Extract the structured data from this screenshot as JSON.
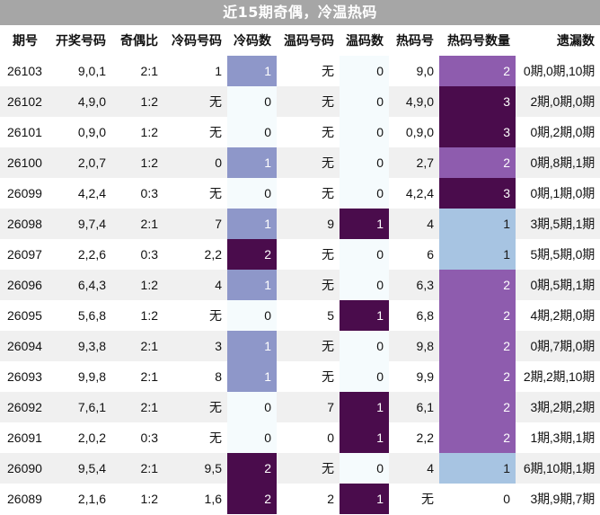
{
  "title": "近15期奇偶，冷温热码",
  "columns": [
    "期号",
    "开奖号码",
    "奇偶比",
    "冷码号码",
    "冷码数",
    "温码号码",
    "温码数",
    "热码号",
    "热码号数量",
    "遗漏数"
  ],
  "rows": [
    [
      "26103",
      "9,0,1",
      "2:1",
      "1",
      "1",
      "无",
      "0",
      "9,0",
      "2",
      "0期,0期,10期"
    ],
    [
      "26102",
      "4,9,0",
      "1:2",
      "无",
      "0",
      "无",
      "0",
      "4,9,0",
      "3",
      "2期,0期,0期"
    ],
    [
      "26101",
      "0,9,0",
      "1:2",
      "无",
      "0",
      "无",
      "0",
      "0,9,0",
      "3",
      "0期,2期,0期"
    ],
    [
      "26100",
      "2,0,7",
      "1:2",
      "0",
      "1",
      "无",
      "0",
      "2,7",
      "2",
      "0期,8期,1期"
    ],
    [
      "26099",
      "4,2,4",
      "0:3",
      "无",
      "0",
      "无",
      "0",
      "4,2,4",
      "3",
      "0期,1期,0期"
    ],
    [
      "26098",
      "9,7,4",
      "2:1",
      "7",
      "1",
      "9",
      "1",
      "4",
      "1",
      "3期,5期,1期"
    ],
    [
      "26097",
      "2,2,6",
      "0:3",
      "2,2",
      "2",
      "无",
      "0",
      "6",
      "1",
      "5期,5期,0期"
    ],
    [
      "26096",
      "6,4,3",
      "1:2",
      "4",
      "1",
      "无",
      "0",
      "6,3",
      "2",
      "0期,5期,1期"
    ],
    [
      "26095",
      "5,6,8",
      "1:2",
      "无",
      "0",
      "5",
      "1",
      "6,8",
      "2",
      "4期,2期,0期"
    ],
    [
      "26094",
      "9,3,8",
      "2:1",
      "3",
      "1",
      "无",
      "0",
      "9,8",
      "2",
      "0期,7期,0期"
    ],
    [
      "26093",
      "9,9,8",
      "2:1",
      "8",
      "1",
      "无",
      "0",
      "9,9",
      "2",
      "2期,2期,10期"
    ],
    [
      "26092",
      "7,6,1",
      "2:1",
      "无",
      "0",
      "7",
      "1",
      "6,1",
      "2",
      "3期,2期,2期"
    ],
    [
      "26091",
      "2,0,2",
      "0:3",
      "无",
      "0",
      "0",
      "1",
      "2,2",
      "2",
      "1期,3期,1期"
    ],
    [
      "26090",
      "9,5,4",
      "2:1",
      "9,5",
      "2",
      "无",
      "0",
      "4",
      "1",
      "6期,10期,1期"
    ],
    [
      "26089",
      "2,1,6",
      "1:2",
      "1,6",
      "2",
      "2",
      "1",
      "无",
      "0",
      "3期,9期,7期"
    ]
  ],
  "colors": {
    "title_bg": "#a6a6a6",
    "cold_1": "#8e97c9",
    "cold_2": "#4a0c4c",
    "warm_1": "#4a0c4c",
    "hot_1": "#a7c4e2",
    "hot_2": "#8e5cae",
    "hot_3": "#4a0c4c",
    "zero_bg": "#f5fbfd",
    "alt_row": "#f0f0f0"
  }
}
